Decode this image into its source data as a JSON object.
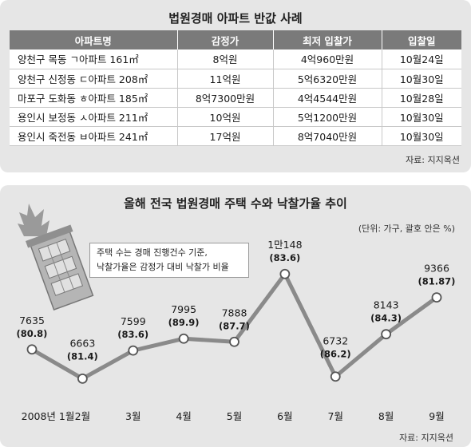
{
  "table": {
    "title": "법원경매 아파트 반값 사례",
    "headers": [
      "아파트명",
      "감정가",
      "최저 입찰가",
      "입찰일"
    ],
    "rows": [
      [
        "양천구 목동 ㄱ아파트 161㎡",
        "8억원",
        "4억960만원",
        "10월24일"
      ],
      [
        "양천구 신정동 ㄷ아파트 208㎡",
        "11억원",
        "5억6320만원",
        "10월30일"
      ],
      [
        "마포구 도화동 ㅎ아파트 185㎡",
        "8억7300만원",
        "4억4544만원",
        "10월28일"
      ],
      [
        "용인시 보정동 ㅅ아파트 211㎡",
        "10억원",
        "5억1200만원",
        "10월30일"
      ],
      [
        "용인시 죽전동 ㅂ아파트 241㎡",
        "17억원",
        "8억7040만원",
        "10월30일"
      ]
    ],
    "source": "자료: 지지옥션"
  },
  "chart": {
    "title": "올해 전국 법원경매 주택 수와 낙찰가율 추이",
    "unit_note": "(단위: 가구, 괄호 안은 %)",
    "note_line1": "주택 수는 경매 진행건수 기준,",
    "note_line2": "낙찰가율은 감정가 대비 낙찰가 비율",
    "source": "자료: 지지옥션",
    "colors": {
      "line": "#8a8a8a",
      "marker_fill": "#ffffff",
      "marker_stroke": "#555555"
    }
  },
  "chart_data": {
    "type": "line",
    "title": "올해 전국 법원경매 주택 수와 낙찰가율 추이",
    "x": [
      "2008년 1월",
      "2월",
      "3월",
      "4월",
      "5월",
      "6월",
      "7월",
      "8월",
      "9월"
    ],
    "value_labels": [
      "7635",
      "6663",
      "7599",
      "7995",
      "7888",
      "1만148",
      "6732",
      "8143",
      "9366"
    ],
    "rate_labels": [
      "(80.8)",
      "(81.4)",
      "(83.6)",
      "(89.9)",
      "(87.7)",
      "(83.6)",
      "(86.2)",
      "(84.3)",
      "(81.87)"
    ],
    "series": [
      {
        "values": [
          7635,
          6663,
          7599,
          7995,
          7888,
          10148,
          6732,
          8143,
          9366
        ]
      }
    ],
    "rates": [
      80.8,
      81.4,
      83.6,
      89.9,
      87.7,
      83.6,
      86.2,
      84.3,
      81.87
    ],
    "ylim": [
      6300,
      10500
    ],
    "grid": false,
    "legend": "none"
  }
}
